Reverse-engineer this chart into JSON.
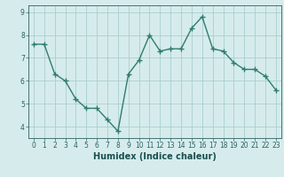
{
  "x": [
    0,
    1,
    2,
    3,
    4,
    5,
    6,
    7,
    8,
    9,
    10,
    11,
    12,
    13,
    14,
    15,
    16,
    17,
    18,
    19,
    20,
    21,
    22,
    23
  ],
  "y": [
    7.6,
    7.6,
    6.3,
    6.0,
    5.2,
    4.8,
    4.8,
    4.3,
    3.8,
    6.3,
    6.9,
    8.0,
    7.3,
    7.4,
    7.4,
    8.3,
    8.8,
    7.4,
    7.3,
    6.8,
    6.5,
    6.5,
    6.2,
    5.6
  ],
  "line_color": "#2e7d6e",
  "marker": "+",
  "marker_size": 4,
  "bg_color": "#d6ecec",
  "grid_color": "#aacece",
  "xlabel": "Humidex (Indice chaleur)",
  "ylim": [
    3.5,
    9.3
  ],
  "xlim": [
    -0.5,
    23.5
  ],
  "yticks": [
    4,
    5,
    6,
    7,
    8,
    9
  ],
  "xticks": [
    0,
    1,
    2,
    3,
    4,
    5,
    6,
    7,
    8,
    9,
    10,
    11,
    12,
    13,
    14,
    15,
    16,
    17,
    18,
    19,
    20,
    21,
    22,
    23
  ],
  "tick_color": "#2e6060",
  "label_color": "#1a4f4f",
  "font_size_ticks": 5.5,
  "font_size_label": 7,
  "line_width": 1.0,
  "marker_edge_width": 1.0
}
